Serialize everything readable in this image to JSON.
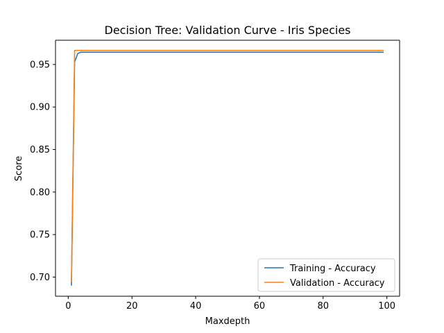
{
  "chart_data": {
    "type": "line",
    "title": "Decision Tree: Validation Curve - Iris Species",
    "xlabel": "Maxdepth",
    "ylabel": "Score",
    "xlim": [
      -4.0,
      104.0
    ],
    "ylim": [
      0.6775,
      0.9785
    ],
    "xticks": [
      0,
      20,
      40,
      60,
      80,
      100
    ],
    "yticks": [
      0.7,
      0.75,
      0.8,
      0.85,
      0.9,
      0.95
    ],
    "legend_position": "lower-right",
    "grid": false,
    "series": [
      {
        "name": "Training - Accuracy",
        "color": "#1f77b4",
        "x": [
          1,
          2,
          3,
          4,
          99
        ],
        "y": [
          0.69,
          0.953,
          0.963,
          0.9644,
          0.9644
        ]
      },
      {
        "name": "Validation - Accuracy",
        "color": "#ff7f0e",
        "x": [
          1,
          2,
          3,
          99
        ],
        "y": [
          0.694,
          0.9665,
          0.9665,
          0.9665
        ]
      }
    ]
  }
}
